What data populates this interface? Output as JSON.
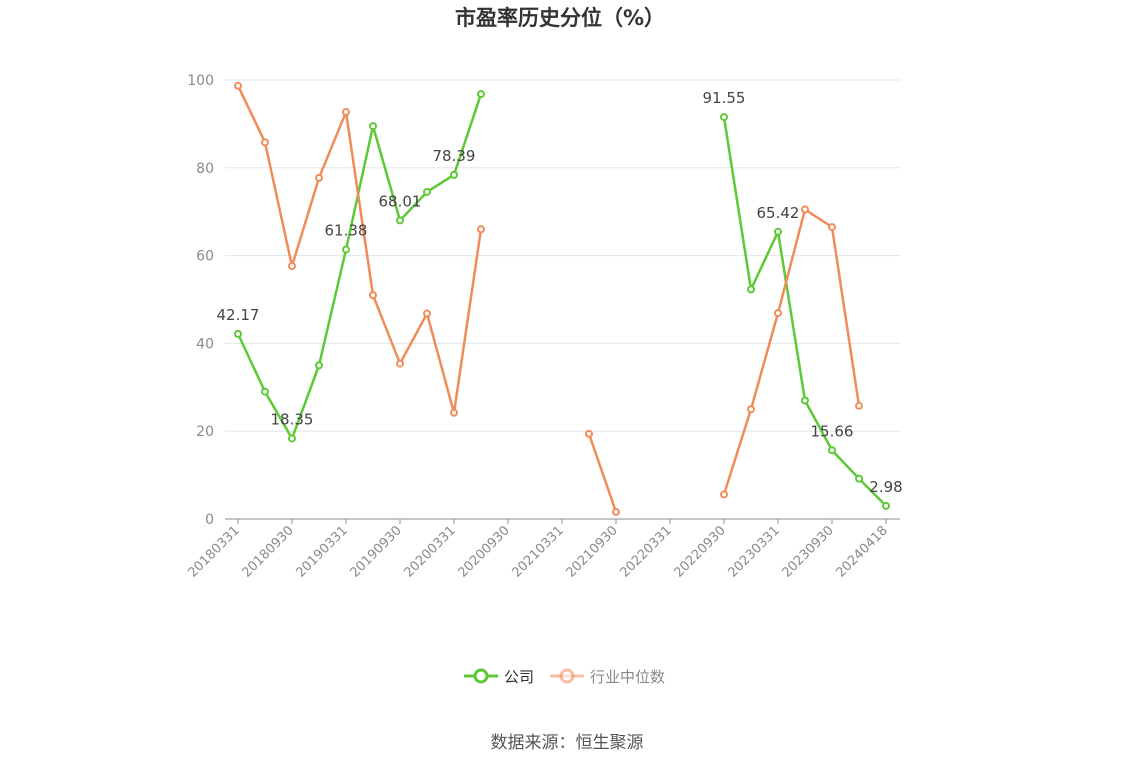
{
  "chart_data": {
    "type": "line",
    "title": "市盈率历史分位（%）",
    "source": "数据来源：恒生聚源",
    "ylim": [
      0,
      100
    ],
    "yticks": [
      0,
      20,
      40,
      60,
      80,
      100
    ],
    "x": [
      "20180331",
      "20180630",
      "20180930",
      "20181231",
      "20190331",
      "20190630",
      "20190930",
      "20191231",
      "20200331",
      "20200630",
      "20200930",
      "20201231",
      "20210331",
      "20210630",
      "20210930",
      "20211231",
      "20220331",
      "20220630",
      "20220930",
      "20221231",
      "20230331",
      "20230630",
      "20230930",
      "20231231",
      "20240418"
    ],
    "xtick_labels": [
      "20180331",
      "20180930",
      "20190331",
      "20190930",
      "20200331",
      "20200930",
      "20210331",
      "20210930",
      "20220331",
      "20220930",
      "20230331",
      "20230930",
      "20240418"
    ],
    "grid": true,
    "legend_position": "bottom-center",
    "series": [
      {
        "name": "公司",
        "color": "#5cc935",
        "values": [
          42.17,
          29,
          18.35,
          35,
          61.38,
          89.5,
          68.01,
          74.5,
          78.39,
          96.8,
          null,
          null,
          null,
          null,
          null,
          null,
          null,
          null,
          91.55,
          52.3,
          65.42,
          27,
          15.66,
          9.2,
          2.98
        ],
        "labels": {
          "0": "42.17",
          "2": "18.35",
          "4": "61.38",
          "6": "68.01",
          "8": "78.39",
          "18": "91.55",
          "20": "65.42",
          "22": "15.66",
          "24": "2.98"
        }
      },
      {
        "name": "行业中位数",
        "color": "#f08c5a",
        "values": [
          98.7,
          85.8,
          57.6,
          77.7,
          92.7,
          51,
          35.4,
          46.8,
          24.2,
          66,
          null,
          null,
          null,
          19.4,
          1.6,
          null,
          null,
          null,
          5.6,
          25,
          46.9,
          70.5,
          66.5,
          25.8,
          null
        ],
        "labels": {}
      }
    ]
  }
}
